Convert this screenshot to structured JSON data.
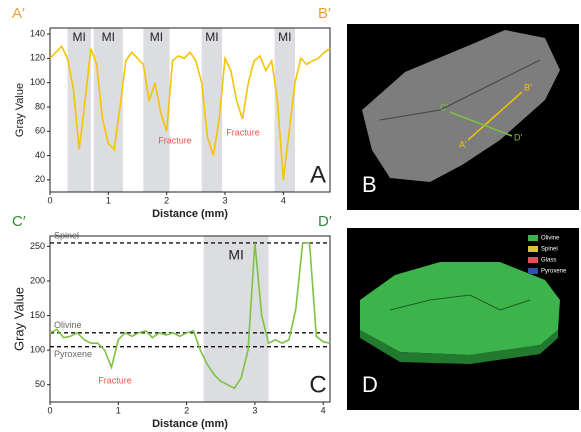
{
  "chart_data": [
    {
      "type": "line",
      "start_label": "A′",
      "end_label": "B′",
      "panel_label": "A",
      "x_label": "Distance (mm)",
      "y_label": "Gray Value",
      "xlim": [
        0,
        4.8
      ],
      "xticks": [
        0,
        1,
        2,
        3,
        4
      ],
      "ylim": [
        10,
        145
      ],
      "yticks": [
        20,
        40,
        60,
        80,
        100,
        120,
        140
      ],
      "x": [
        0,
        0.1,
        0.2,
        0.3,
        0.4,
        0.5,
        0.6,
        0.7,
        0.8,
        0.9,
        1,
        1.1,
        1.2,
        1.3,
        1.4,
        1.5,
        1.6,
        1.7,
        1.8,
        1.9,
        2,
        2.1,
        2.2,
        2.3,
        2.4,
        2.5,
        2.6,
        2.7,
        2.8,
        2.9,
        3,
        3.1,
        3.2,
        3.3,
        3.4,
        3.5,
        3.6,
        3.7,
        3.8,
        3.9,
        4,
        4.1,
        4.2,
        4.3,
        4.4,
        4.5,
        4.6,
        4.7,
        4.8
      ],
      "series": [
        {
          "color": "#f5c400",
          "values": [
            120,
            125,
            130,
            120,
            95,
            45,
            85,
            128,
            115,
            70,
            50,
            45,
            80,
            118,
            125,
            120,
            115,
            85,
            100,
            75,
            60,
            118,
            122,
            120,
            125,
            118,
            100,
            55,
            40,
            70,
            120,
            110,
            85,
            70,
            100,
            118,
            122,
            110,
            118,
            85,
            20,
            60,
            100,
            120,
            115,
            118,
            120,
            125,
            128
          ]
        }
      ],
      "bands": [
        {
          "range": [
            0.3,
            0.7
          ],
          "label": "MI"
        },
        {
          "range": [
            0.75,
            1.25
          ],
          "label": "MI"
        },
        {
          "range": [
            1.6,
            2.05
          ],
          "label": "MI"
        },
        {
          "range": [
            2.6,
            2.95
          ],
          "label": "MI"
        },
        {
          "range": [
            3.85,
            4.2
          ],
          "label": "MI"
        }
      ],
      "annotations": [
        "Fracture",
        "Fracture"
      ]
    },
    {
      "type": "line",
      "start_label": "C′",
      "end_label": "D′",
      "panel_label": "C",
      "x_label": "Distance (mm)",
      "y_label": "Gray Value",
      "xlim": [
        0,
        4.1
      ],
      "xticks": [
        0,
        1,
        2,
        3,
        4
      ],
      "ylim": [
        25,
        265
      ],
      "yticks": [
        50,
        100,
        150,
        200,
        250
      ],
      "x": [
        0,
        0.1,
        0.2,
        0.3,
        0.4,
        0.5,
        0.6,
        0.7,
        0.8,
        0.9,
        1,
        1.1,
        1.2,
        1.3,
        1.4,
        1.5,
        1.6,
        1.7,
        1.8,
        1.9,
        2,
        2.1,
        2.2,
        2.3,
        2.4,
        2.5,
        2.6,
        2.7,
        2.8,
        2.9,
        3,
        3.1,
        3.2,
        3.3,
        3.4,
        3.5,
        3.6,
        3.7,
        3.8,
        3.9,
        4,
        4.1
      ],
      "series": [
        {
          "color": "#7dc242",
          "values": [
            125,
            130,
            118,
            120,
            125,
            115,
            110,
            110,
            100,
            75,
            115,
            125,
            120,
            125,
            128,
            118,
            125,
            122,
            125,
            120,
            125,
            128,
            100,
            80,
            65,
            55,
            50,
            45,
            60,
            100,
            255,
            150,
            110,
            115,
            110,
            115,
            160,
            255,
            255,
            120,
            112,
            110
          ]
        }
      ],
      "bands": [
        {
          "range": [
            2.25,
            3.2
          ],
          "label": "MI"
        }
      ],
      "hlines": [
        {
          "value": 255,
          "label": "Spinel"
        },
        {
          "value": 125,
          "label": "Olivine"
        },
        {
          "value": 105,
          "label": "Pyroxene"
        }
      ],
      "annotations": [
        "Fracture"
      ]
    }
  ],
  "images": [
    {
      "panel_label": "B",
      "labels": [
        "A′",
        "B′",
        "C′",
        "D′"
      ]
    },
    {
      "panel_label": "D",
      "legend": [
        {
          "name": "Olivine",
          "color": "#3cb44b"
        },
        {
          "name": "Spinel",
          "color": "#d4c43a"
        },
        {
          "name": "Glass",
          "color": "#e0505a"
        },
        {
          "name": "Pyroxene",
          "color": "#2f4fa8"
        }
      ]
    }
  ]
}
